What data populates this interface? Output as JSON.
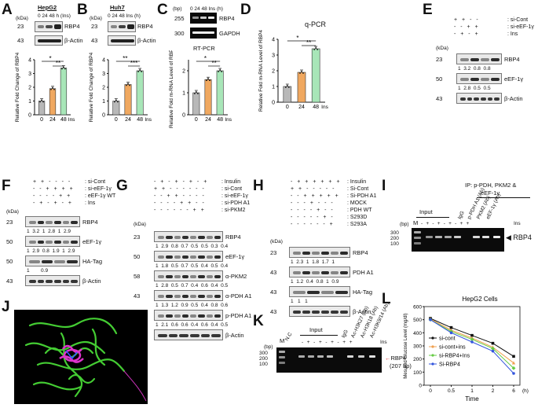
{
  "panels": {
    "A": {
      "letter": "A",
      "cell": "HepG2",
      "time_header": "0 24 48 h (Ins)",
      "kda": "(kDa)",
      "mw_top": "23",
      "mw_bottom": "43",
      "protein": "RBP4",
      "loading": "β-Actin",
      "chart_data": {
        "type": "bar",
        "categories": [
          "0",
          "24",
          "48"
        ],
        "values": [
          1.0,
          1.9,
          3.4
        ],
        "ylabel": "Relative Fold Change of RBP4",
        "ylim": [
          0,
          4
        ],
        "yticks": [
          "0",
          "1",
          "2",
          "3",
          "4"
        ],
        "xlabel": "Ins (h)",
        "sig": [
          "*",
          "**"
        ],
        "colors": [
          "#b8b8b8",
          "#f0a860",
          "#a8e6b8"
        ]
      }
    },
    "B": {
      "letter": "B",
      "cell": "Huh7",
      "time_header": "0 24 48 Ins (h)",
      "kda": "(kDa)",
      "mw_top": "23",
      "mw_bottom": "43",
      "protein": "RBP4",
      "loading": "β-Actin",
      "chart_data": {
        "type": "bar",
        "categories": [
          "0",
          "24",
          "48"
        ],
        "values": [
          1.0,
          2.2,
          3.2
        ],
        "ylabel": "Relative Fold Change of RBP4",
        "ylim": [
          0,
          4
        ],
        "yticks": [
          "0",
          "1",
          "2",
          "3",
          "4"
        ],
        "xlabel": "Ins (h)",
        "sig": [
          "**",
          "***"
        ],
        "colors": [
          "#b8b8b8",
          "#f0a860",
          "#a8e6b8"
        ]
      }
    },
    "C": {
      "letter": "C",
      "bp": "(bp)",
      "time_header": "0 24 48 Ins (h)",
      "mw_top": "255",
      "mw_bottom": "300",
      "gene1": "RBP4",
      "gene2": "GAPDH",
      "method": "RT-PCR",
      "chart_data": {
        "type": "bar",
        "categories": [
          "0",
          "24",
          "48"
        ],
        "values": [
          1.0,
          1.6,
          2.0
        ],
        "ylabel": "Relative Fold m-RNA Level of RBP4",
        "ylim": [
          0,
          2.5
        ],
        "yticks": [
          "0",
          "1",
          "2"
        ],
        "xlabel": "Ins (h)",
        "sig": [
          "*",
          "**"
        ],
        "colors": [
          "#b8b8b8",
          "#f0a860",
          "#a8e6b8"
        ]
      }
    },
    "D": {
      "letter": "D",
      "method": "q-PCR",
      "chart_data": {
        "type": "bar",
        "categories": [
          "0",
          "24",
          "48"
        ],
        "values": [
          1.0,
          1.9,
          3.4
        ],
        "ylabel": "Relative Fold m-RNA Level of RBP4",
        "ylim": [
          0,
          4
        ],
        "yticks": [
          "0",
          "1",
          "2",
          "3",
          "4"
        ],
        "xlabel": "Ins (h)",
        "sig": [
          "*",
          "**"
        ],
        "colors": [
          "#b8b8b8",
          "#f0a860",
          "#a8e6b8"
        ]
      }
    },
    "E": {
      "letter": "E",
      "rows": [
        {
          "signs": "+ + - -",
          "label": "si-Cont"
        },
        {
          "signs": "- - + +",
          "label": "si-eEF-1γ"
        },
        {
          "signs": "- + - +",
          "label": "Ins"
        }
      ],
      "kda": "(kDa)",
      "blots": [
        {
          "mw": "23",
          "name": "RBP4",
          "quant": "1  3.2  0.8  0.8"
        },
        {
          "mw": "50",
          "name": "eEF-1γ",
          "quant": "1  2.8  0.5  0.5"
        },
        {
          "mw": "43",
          "name": "β-Actin",
          "quant": ""
        }
      ]
    },
    "F": {
      "letter": "F",
      "rows": [
        {
          "signs": "+ + - - - -",
          "label": "si-Cont"
        },
        {
          "signs": "- - + + + +",
          "label": "si-eEF-1γ"
        },
        {
          "signs": "- - - - + +",
          "label": "eEF-1γ WT"
        },
        {
          "signs": "- + - + - +",
          "label": "Ins"
        }
      ],
      "kda": "(kDa)",
      "blots": [
        {
          "mw": "23",
          "name": "RBP4",
          "quant": "1  3.2  1  2.8  1  2.9"
        },
        {
          "mw": "50",
          "name": "eEF-1γ",
          "quant": "1  2.9  0.8  1.9  1  2.9"
        },
        {
          "mw": "50",
          "name": "HA-Tag",
          "quant": "1        0.9"
        },
        {
          "mw": "43",
          "name": "β-Actin",
          "quant": ""
        }
      ]
    },
    "G": {
      "letter": "G",
      "rows": [
        {
          "signs": "- + - + - + - +",
          "label": "Insulin"
        },
        {
          "signs": "+ + - - - - - -",
          "label": "si-Cont"
        },
        {
          "signs": "- - + + - - - -",
          "label": "si-eEF-1γ"
        },
        {
          "signs": "- - - - + + - -",
          "label": "si-PDH A1"
        },
        {
          "signs": "- - - - - - + +",
          "label": "si-PKM2"
        }
      ],
      "kda": "(kDa)",
      "blots": [
        {
          "mw": "23",
          "name": "RBP4",
          "quant": "1  2.9  0.8  0.7  0.5  0.5  0.3  0.4"
        },
        {
          "mw": "50",
          "name": "eEF-1γ",
          "quant": "1  1.8  0.5  0.7  0.5  0.4  0.5  0.4"
        },
        {
          "mw": "58",
          "name": "α-PKM2",
          "quant": "1  2.8  0.5  0.7  0.4  0.6  0.4  0.5"
        },
        {
          "mw": "43",
          "name": "α-PDH A1",
          "quant": "1  1.3  1.2  0.9  0.5  0.4  0.8  0.6"
        },
        {
          "mw": "43",
          "name": "p-PDH A1",
          "quant": "1  2.1  0.6  0.6  0.4  0.6  0.4  0.5"
        },
        {
          "mw": "43",
          "name": "β-Actin",
          "quant": ""
        }
      ]
    },
    "H": {
      "letter": "H",
      "rows": [
        {
          "signs": "- + + + + + +",
          "label": "Insulin"
        },
        {
          "signs": "+ + - - - - -",
          "label": "Si-Cont"
        },
        {
          "signs": "- - + + + + +",
          "label": "Si-PDH A1"
        },
        {
          "signs": "- - - + - - -",
          "label": "MOCK"
        },
        {
          "signs": "- - - - + - -",
          "label": "PDH WT"
        },
        {
          "signs": "- - - - - + -",
          "label": "S293D"
        },
        {
          "signs": "- - - - - - +",
          "label": "S293A"
        }
      ],
      "kda": "(kDa)",
      "blots": [
        {
          "mw": "23",
          "name": "RBP4",
          "quant": "1  2.3  1  1.8  1.7  1"
        },
        {
          "mw": "43",
          "name": "PDH A1",
          "quant": "1  1.2  0.4  0.8  1  0.9"
        },
        {
          "mw": "43",
          "name": "HA-Tag",
          "quant": "1   1   1"
        },
        {
          "mw": "43",
          "name": "β-Actin",
          "quant": ""
        }
      ]
    },
    "I": {
      "letter": "I",
      "title1": "IP: p-PDH, PKM2 &",
      "title2": "eEF-1γ",
      "bp": "(bp)",
      "input": "Input",
      "m": "M",
      "ins_signs": "- + - + - + - + +",
      "ins": "Ins",
      "lanes": [
        "IgG",
        "p-PDH A1 (Ab)",
        "PKM2 (Ab)",
        "eEF-1γ (Ab)"
      ],
      "ladder": [
        "300",
        "200",
        "100"
      ],
      "product": "RBP4"
    },
    "J": {
      "letter": "J"
    },
    "K": {
      "letter": "K",
      "bp": "(bp)",
      "input": "Input",
      "m": "M",
      "nc": "N.C",
      "ins_signs": "- + - + - + - + +",
      "ins": "Ins",
      "lanes": [
        "IgG",
        "Ac-H3K27 (Ab)",
        "Ac-H3K18 (Ab)",
        "Ac-H3K9/14 (Ab)"
      ],
      "ladder": [
        "300",
        "200",
        "100"
      ],
      "product": "RBP4",
      "product_size": "(207 bp)"
    },
    "L": {
      "letter": "L",
      "chart_data": {
        "type": "line",
        "title": "HepG2 Cells",
        "xlabel": "Time",
        "xunit": "(h)",
        "ylabel": "Mesured Glucose Level (mg/dl)",
        "x": [
          0,
          0.5,
          1,
          2,
          6
        ],
        "xticks": [
          "0",
          "0.5",
          "1",
          "2",
          "6"
        ],
        "yticks": [
          "0",
          "100",
          "200",
          "300",
          "400",
          "500",
          "600"
        ],
        "ylim": [
          0,
          600
        ],
        "series": [
          {
            "name": "si-cont",
            "color": "#111111",
            "values": [
              510,
              440,
              380,
              320,
              220
            ]
          },
          {
            "name": "si-cont+ins",
            "color": "#f0a050",
            "values": [
              505,
              420,
              360,
              290,
              170
            ]
          },
          {
            "name": "si-RBP4+Ins",
            "color": "#66cc44",
            "values": [
              500,
              410,
              350,
              280,
              130
            ]
          },
          {
            "name": "Si-RBP4",
            "color": "#3355dd",
            "values": [
              500,
              400,
              330,
              260,
              90
            ]
          }
        ]
      }
    }
  }
}
